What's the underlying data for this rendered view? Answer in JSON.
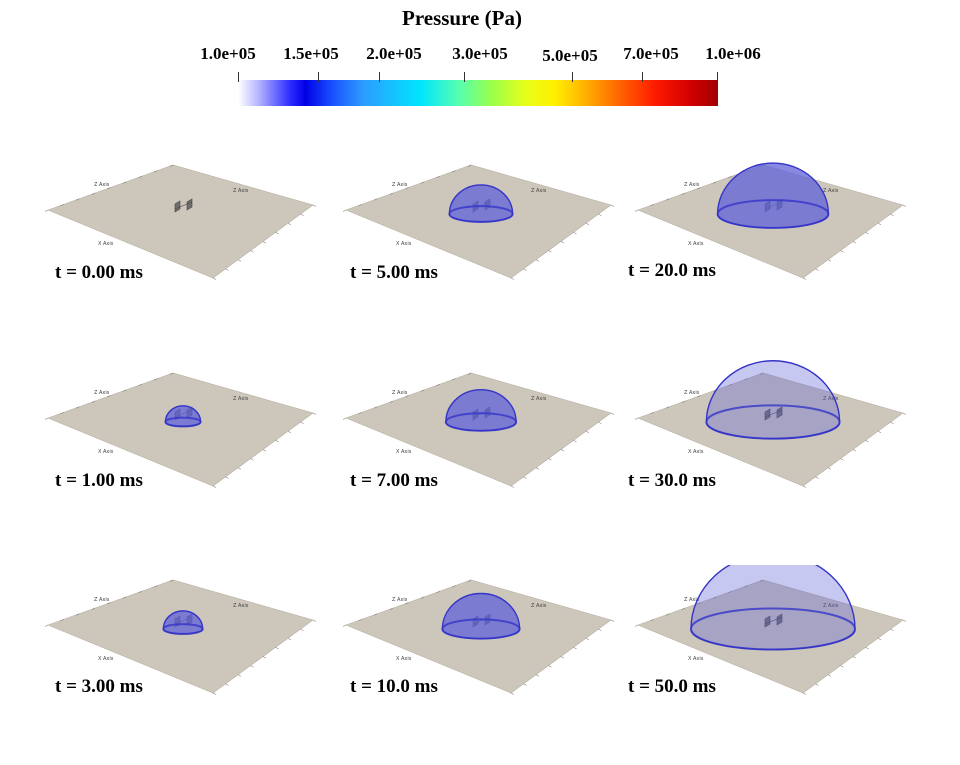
{
  "title": "Pressure (Pa)",
  "colorbar": {
    "tick_labels": [
      "1.0e+05",
      "1.5e+05",
      "2.0e+05",
      "3.0e+05",
      "5.0e+05",
      "7.0e+05",
      "1.0e+06"
    ]
  },
  "axis_text": {
    "z_axis": "Z Axis",
    "x_axis": "X Axis"
  },
  "panels": [
    {
      "time": "t = 0.00 ms",
      "dome": 0
    },
    {
      "time": "t = 5.00 ms",
      "dome": 0.28
    },
    {
      "time": "t = 20.0 ms",
      "dome": 0.62
    },
    {
      "time": "t = 1.00 ms",
      "dome": 0.08
    },
    {
      "time": "t = 7.00 ms",
      "dome": 0.33
    },
    {
      "time": "t = 30.0 ms",
      "dome": 0.78
    },
    {
      "time": "t = 3.00 ms",
      "dome": 0.11
    },
    {
      "time": "t = 10.0 ms",
      "dome": 0.38
    },
    {
      "time": "t = 50.0 ms",
      "dome": 1.0
    }
  ],
  "colors": {
    "ground": "#cdc6ba",
    "dome_fill": "#5f62d8",
    "dome_edge": "#3434c8",
    "block": "#6f6f6f"
  }
}
